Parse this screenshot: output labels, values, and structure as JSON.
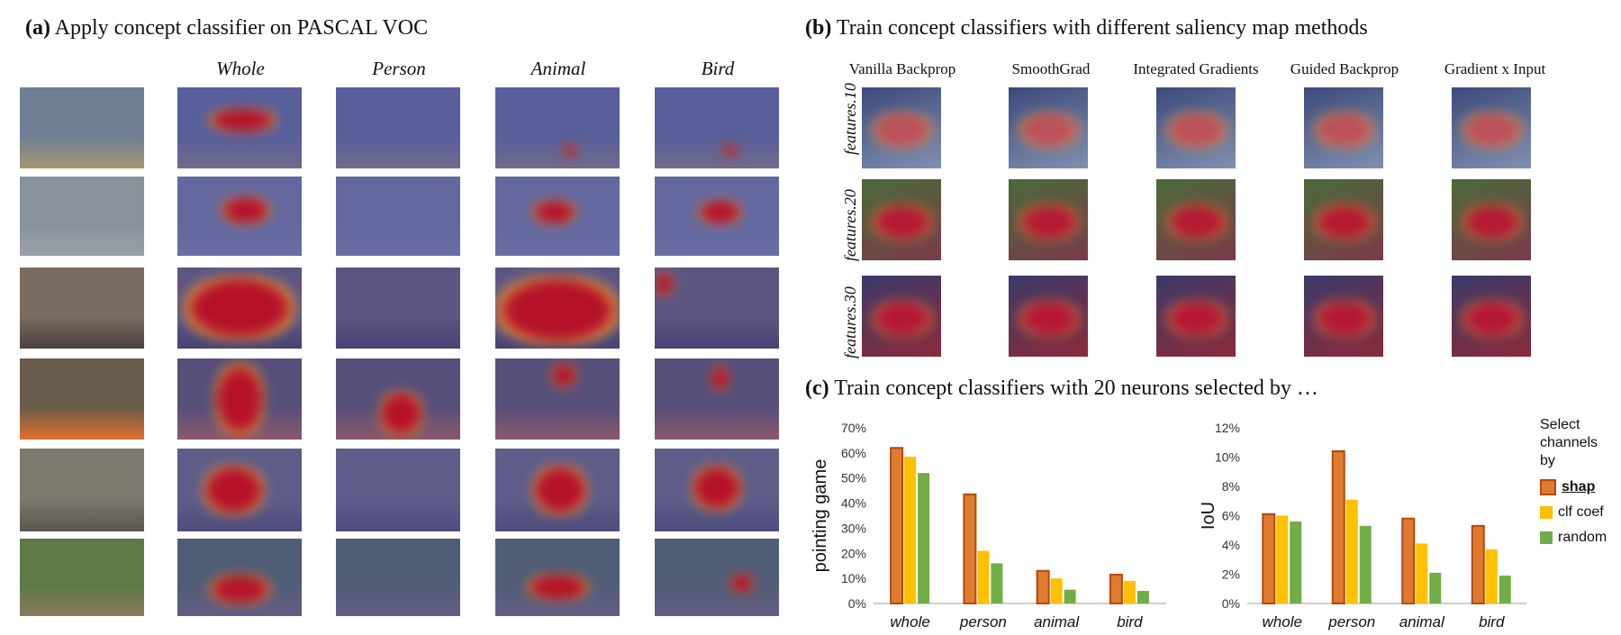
{
  "panel_a": {
    "label": "(a)",
    "title": "Apply concept classifier on PASCAL VOC",
    "columns": [
      "Whole",
      "Person",
      "Animal",
      "Bird"
    ],
    "rows": [
      {
        "scene": "airplane",
        "base": "#6f7e92",
        "ground": "#a89672"
      },
      {
        "scene": "bird-water",
        "base": "#8a929c",
        "ground": "#9aa0a8"
      },
      {
        "scene": "cats",
        "base": "#7a6c60",
        "ground": "#4b4140"
      },
      {
        "scene": "child",
        "base": "#6a5c4c",
        "ground": "#e0702a"
      },
      {
        "scene": "partridge",
        "base": "#7d7a70",
        "ground": "#5a554e"
      },
      {
        "scene": "buffalo",
        "base": "#5e7a44",
        "ground": "#8a7a60"
      }
    ]
  },
  "panel_b": {
    "label": "(b)",
    "title": "Train concept classifiers with different saliency map methods",
    "methods": [
      "Vanilla Backprop",
      "SmoothGrad",
      "Integrated Gradients",
      "Guided Backprop",
      "Gradient x Input"
    ],
    "layers": [
      "features.10",
      "features.20",
      "features.30"
    ]
  },
  "panel_c": {
    "label": "(c)",
    "title": "Train concept classifiers with 20 neurons selected by …"
  },
  "legend": {
    "title": "Select channels by",
    "items": [
      {
        "label": "shap",
        "color": "#e07a2e",
        "stroke": "#b5470f"
      },
      {
        "label": "clf coef",
        "color": "#ffc000",
        "stroke": "#ffc000"
      },
      {
        "label": "random",
        "color": "#70ad47",
        "stroke": "#70ad47"
      }
    ]
  },
  "chart_data": [
    {
      "type": "bar",
      "categories": [
        "whole",
        "person",
        "animal",
        "bird"
      ],
      "series": [
        {
          "name": "shap",
          "values": [
            62,
            43.5,
            13,
            11.5
          ]
        },
        {
          "name": "clf coef",
          "values": [
            58.5,
            21,
            10,
            9
          ]
        },
        {
          "name": "random",
          "values": [
            52,
            16,
            5.5,
            5
          ]
        }
      ],
      "ylabel": "pointing game",
      "ylim": [
        0,
        70
      ],
      "yticks": [
        "0%",
        "10%",
        "20%",
        "30%",
        "40%",
        "50%",
        "60%",
        "70%"
      ],
      "ytick_values": [
        0,
        10,
        20,
        30,
        40,
        50,
        60,
        70
      ],
      "grid": false
    },
    {
      "type": "bar",
      "categories": [
        "whole",
        "person",
        "animal",
        "bird"
      ],
      "series": [
        {
          "name": "shap",
          "values": [
            6.1,
            10.4,
            5.8,
            5.3
          ]
        },
        {
          "name": "clf coef",
          "values": [
            6.0,
            7.1,
            4.1,
            3.7
          ]
        },
        {
          "name": "random",
          "values": [
            5.6,
            5.3,
            2.1,
            1.9
          ]
        }
      ],
      "ylabel": "IoU",
      "ylim": [
        0,
        12
      ],
      "yticks": [
        "0%",
        "2%",
        "4%",
        "6%",
        "8%",
        "10%",
        "12%"
      ],
      "ytick_values": [
        0,
        2,
        4,
        6,
        8,
        10,
        12
      ],
      "grid": false
    }
  ]
}
